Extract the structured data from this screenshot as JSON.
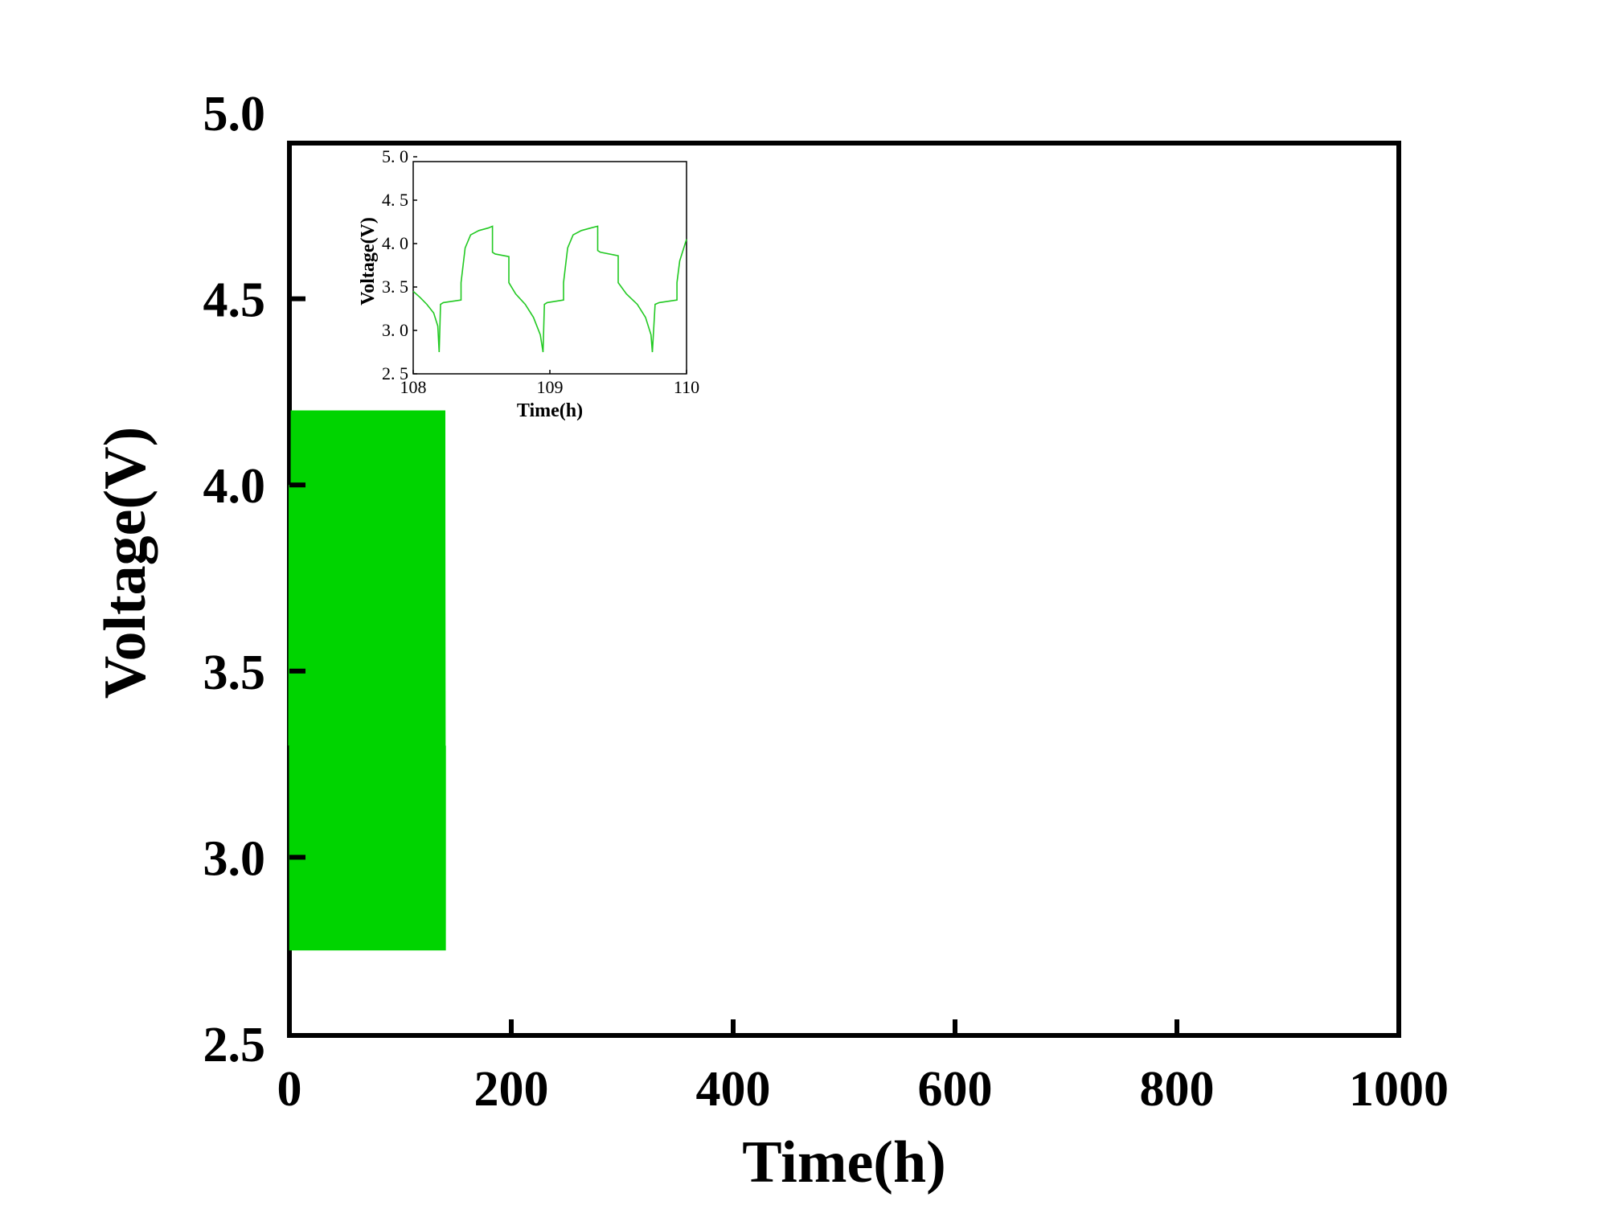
{
  "chart_data": [
    {
      "id": "main",
      "type": "line",
      "xlabel": "Time(h)",
      "ylabel": "Voltage(V)",
      "xlim": [
        0,
        1000
      ],
      "ylim": [
        2.5,
        5.0
      ],
      "x_ticks": [
        "0",
        "200",
        "400",
        "600",
        "800",
        "1000"
      ],
      "y_ticks": [
        "2.5",
        "3.0",
        "3.5",
        "4.0",
        "4.5",
        "5.0"
      ],
      "grid": false,
      "legend": "none",
      "series": [
        {
          "color": "#00d400",
          "style": "charge-discharge-cycling",
          "t_start": 0,
          "t_end": 140,
          "v_min": 2.75,
          "v_max": 4.2,
          "initial_v_max": 4.0,
          "cycles_visible": 150
        }
      ]
    },
    {
      "id": "inset",
      "type": "line",
      "xlabel": "Time(h)",
      "ylabel": "Voltage(V)",
      "xlim": [
        108,
        110
      ],
      "ylim": [
        2.5,
        5.0
      ],
      "x_ticks": [
        "108",
        "109",
        "110"
      ],
      "y_ticks": [
        "2. 5",
        "3. 0",
        "3. 5",
        "4. 0",
        "4. 5",
        "5. 0"
      ],
      "grid": false,
      "legend": "none",
      "series": [
        {
          "color": "#22c922",
          "x": [
            108.0,
            108.05,
            108.1,
            108.15,
            108.18,
            108.19,
            108.2,
            108.22,
            108.35,
            108.35,
            108.38,
            108.42,
            108.48,
            108.55,
            108.58,
            108.58,
            108.6,
            108.7,
            108.7,
            108.75,
            108.82,
            108.88,
            108.93,
            108.95,
            108.96,
            108.98,
            109.1,
            109.1,
            109.13,
            109.17,
            109.23,
            109.3,
            109.35,
            109.35,
            109.37,
            109.5,
            109.5,
            109.56,
            109.64,
            109.7,
            109.74,
            109.75,
            109.77,
            109.8,
            109.93,
            109.93,
            109.95,
            109.98,
            110.0
          ],
          "y": [
            3.45,
            3.38,
            3.3,
            3.2,
            3.05,
            2.75,
            3.3,
            3.32,
            3.35,
            3.55,
            3.95,
            4.1,
            4.15,
            4.18,
            4.2,
            3.9,
            3.88,
            3.85,
            3.55,
            3.42,
            3.3,
            3.15,
            2.95,
            2.75,
            3.3,
            3.32,
            3.35,
            3.55,
            3.95,
            4.1,
            4.15,
            4.18,
            4.2,
            3.92,
            3.9,
            3.86,
            3.55,
            3.42,
            3.3,
            3.15,
            2.95,
            2.75,
            3.3,
            3.32,
            3.35,
            3.55,
            3.8,
            3.95,
            4.05
          ]
        }
      ]
    }
  ]
}
